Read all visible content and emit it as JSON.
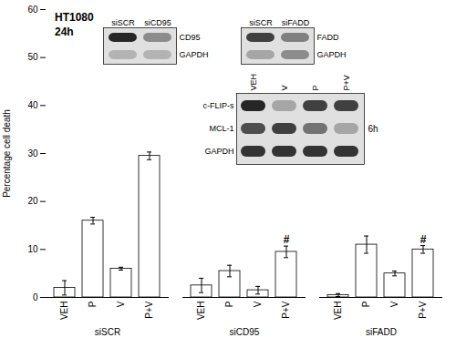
{
  "chart_data": {
    "type": "bar",
    "title": "HT1080",
    "subtitle": "24h",
    "ylabel": "Percentage cell death",
    "groups": [
      "siSCR",
      "siCD95",
      "siFADD"
    ],
    "categories": [
      "VEH",
      "P",
      "V",
      "P+V"
    ],
    "values": [
      [
        2.0,
        16.0,
        6.0,
        29.5
      ],
      [
        2.5,
        5.5,
        1.5,
        9.5
      ],
      [
        0.5,
        11.0,
        5.0,
        10.0
      ]
    ],
    "errors": [
      [
        1.5,
        0.7,
        0.3,
        0.8
      ],
      [
        1.5,
        1.2,
        0.8,
        1.2
      ],
      [
        0.3,
        1.8,
        0.5,
        0.8
      ]
    ],
    "mark_text": "#",
    "marked": [
      [
        false,
        false,
        false,
        false
      ],
      [
        false,
        false,
        false,
        true
      ],
      [
        false,
        false,
        false,
        true
      ]
    ],
    "ylim": [
      0,
      60
    ],
    "yticks": [
      0,
      10,
      20,
      30,
      40,
      50,
      60
    ],
    "grid": false,
    "blots": [
      {
        "columns": [
          "siSCR",
          "siCD95"
        ],
        "rows": [
          "CD95",
          "GAPDH"
        ],
        "intensities": [
          [
            0.85,
            0.45
          ],
          [
            0.3,
            0.3
          ]
        ],
        "range": [
          0,
          1
        ]
      },
      {
        "columns": [
          "siSCR",
          "siFADD"
        ],
        "rows": [
          "FADD",
          "GAPDH"
        ],
        "intensities": [
          [
            0.75,
            0.5
          ],
          [
            0.35,
            0.45
          ]
        ],
        "range": [
          0,
          1
        ]
      },
      {
        "columns": [
          "VEH",
          "V",
          "P",
          "P+V"
        ],
        "rows": [
          "c-FLIP-s",
          "MCL-1",
          "GAPDH"
        ],
        "intensities": [
          [
            0.85,
            0.35,
            0.75,
            0.75
          ],
          [
            0.7,
            0.75,
            0.55,
            0.35
          ],
          [
            0.8,
            0.8,
            0.8,
            0.8
          ]
        ],
        "range": [
          0,
          1
        ],
        "label": "6h"
      }
    ]
  }
}
